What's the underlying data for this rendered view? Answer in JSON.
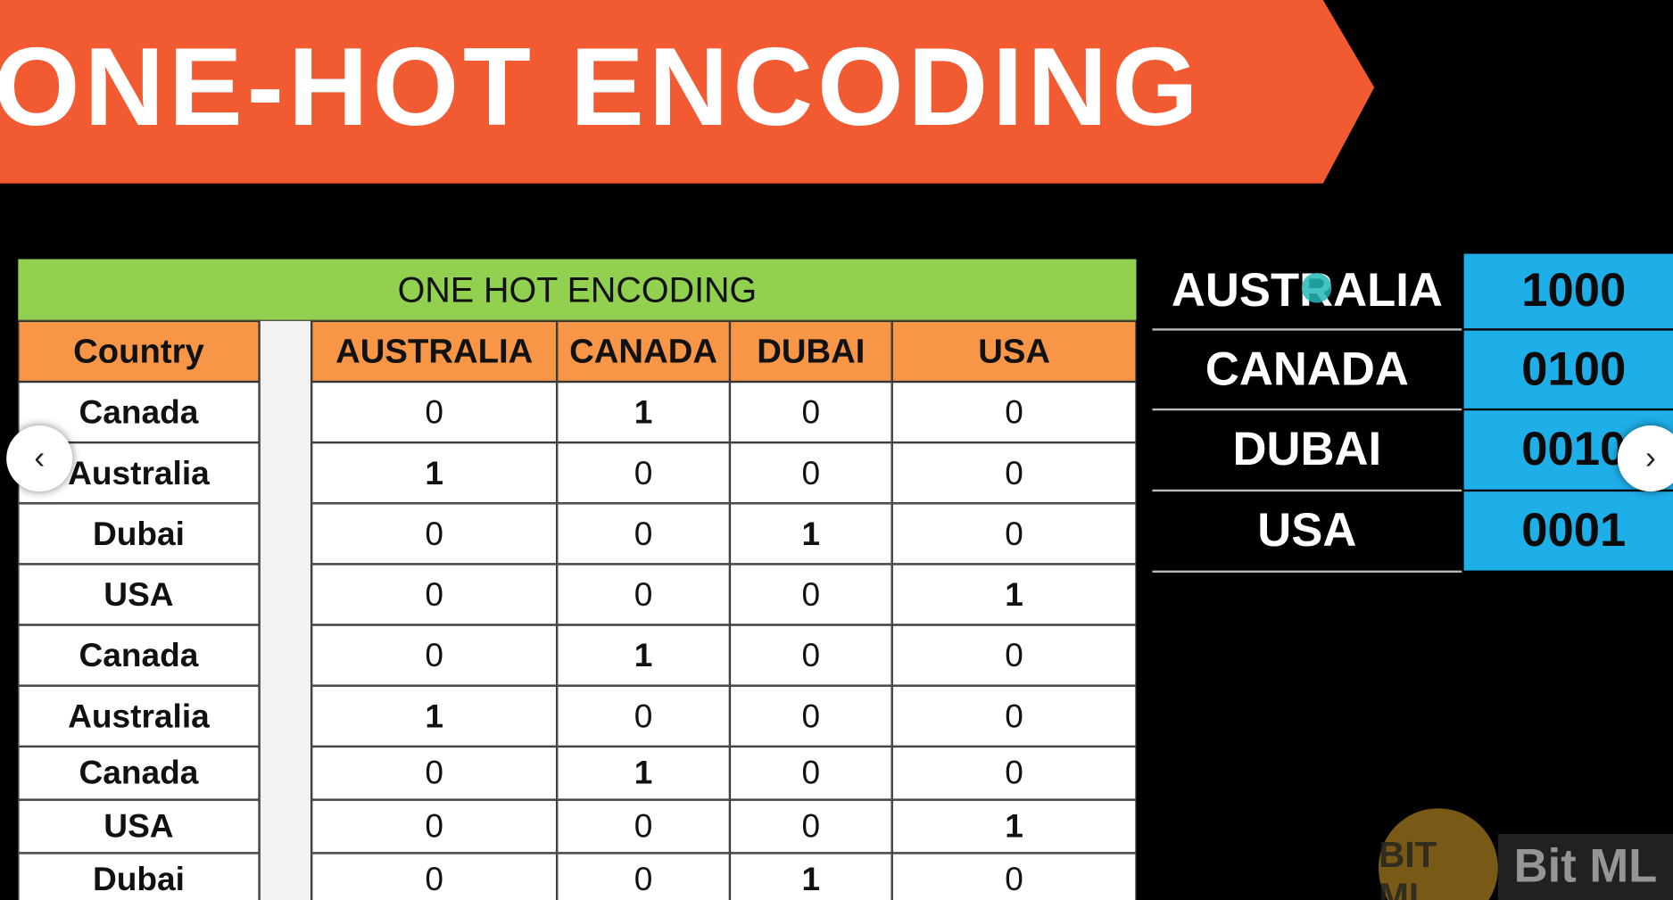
{
  "header": {
    "title": "ONE-HOT ENCODING"
  },
  "table": {
    "title": "ONE HOT ENCODING",
    "columns": [
      "Country",
      "AUSTRALIA",
      "CANADA",
      "DUBAI",
      "USA"
    ],
    "rows": [
      [
        "Canada",
        0,
        1,
        0,
        0
      ],
      [
        "Australia",
        1,
        0,
        0,
        0
      ],
      [
        "Dubai",
        0,
        0,
        1,
        0
      ],
      [
        "USA",
        0,
        0,
        0,
        1
      ],
      [
        "Canada",
        0,
        1,
        0,
        0
      ],
      [
        "Australia",
        1,
        0,
        0,
        0
      ],
      [
        "Canada",
        0,
        1,
        0,
        0
      ],
      [
        "USA",
        0,
        0,
        0,
        1
      ],
      [
        "Dubai",
        0,
        0,
        1,
        0
      ]
    ]
  },
  "lookup": {
    "rows": [
      {
        "label": "AUSTRALIA",
        "code": "1000"
      },
      {
        "label": "CANADA",
        "code": "0100"
      },
      {
        "label": "DUBAI",
        "code": "0010"
      },
      {
        "label": "USA",
        "code": "0001"
      }
    ]
  },
  "watermark": {
    "logo": "BIT ML",
    "text": "Bit ML"
  }
}
